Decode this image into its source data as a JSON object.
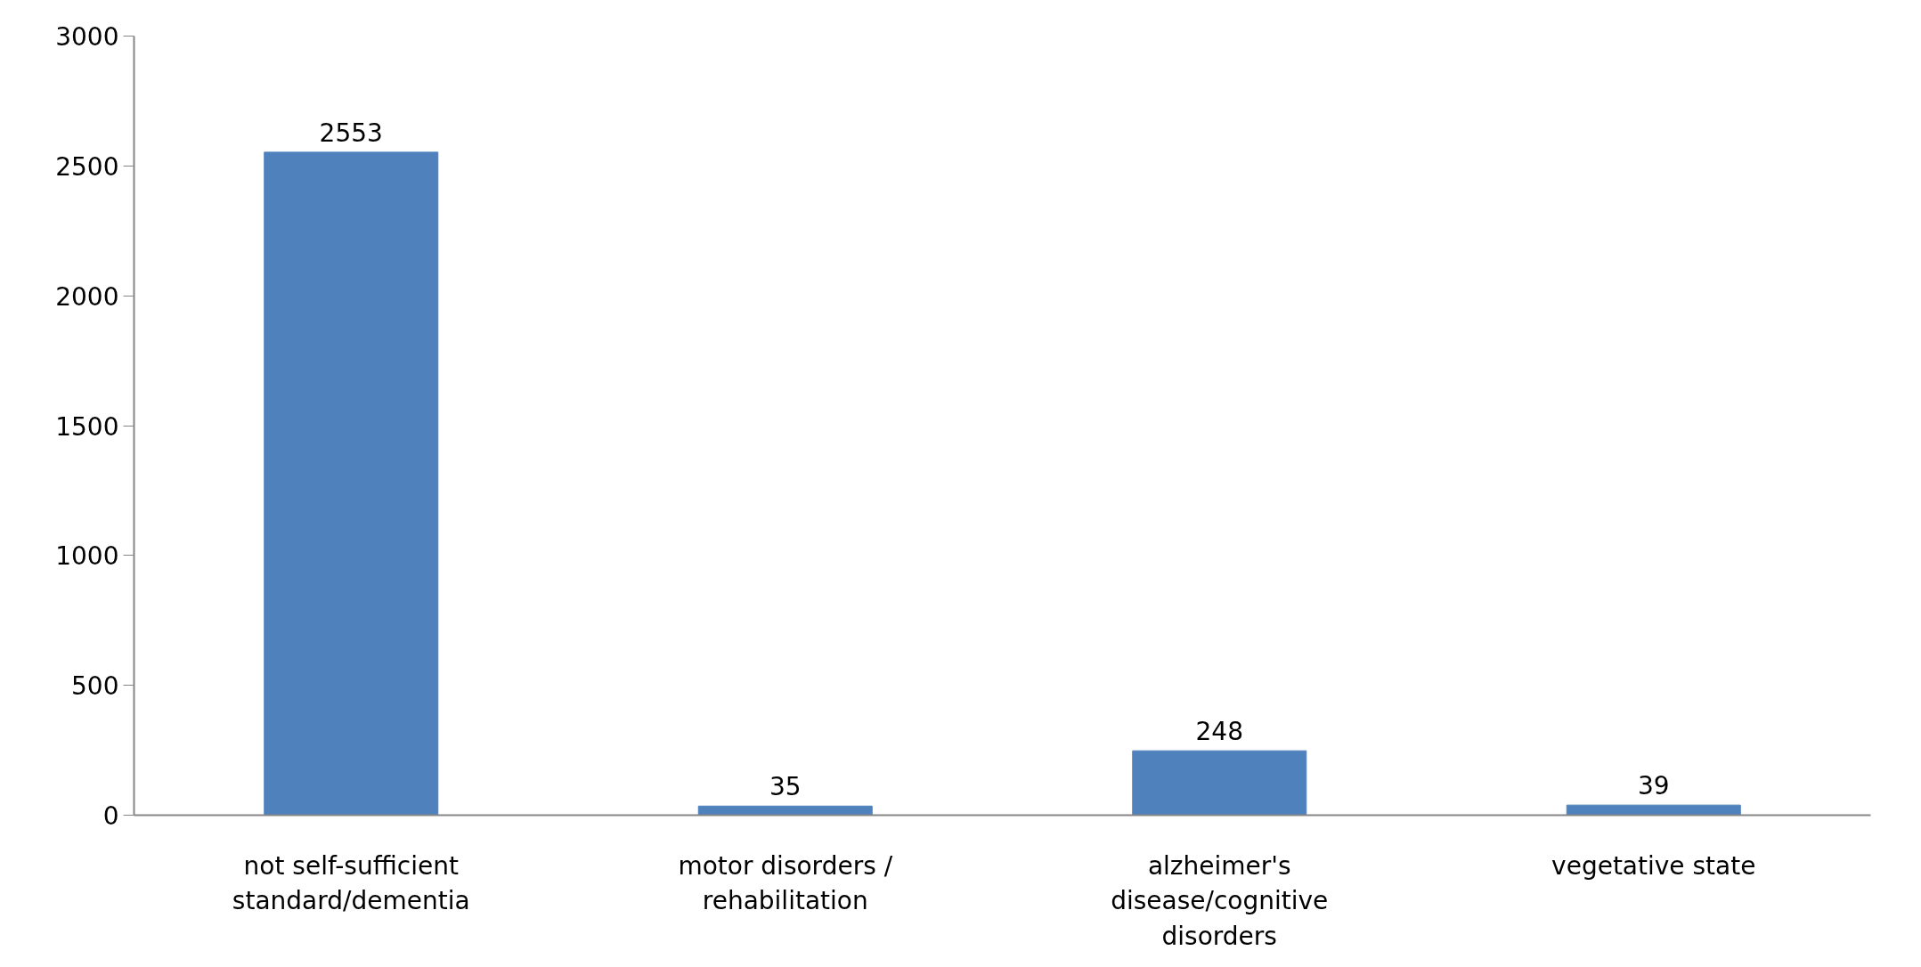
{
  "chart_data": {
    "type": "bar",
    "categories": [
      "not self-sufficient standard/dementia",
      "motor disorders / rehabilitation",
      "alzheimer's disease/cognitive disorders",
      "vegetative state"
    ],
    "values": [
      2553,
      35,
      248,
      39
    ],
    "color": "#4f81bd",
    "ylim": [
      0,
      3000
    ],
    "yticks": [
      0,
      500,
      1000,
      1500,
      2000,
      2500,
      3000
    ],
    "data_labels": true,
    "grid": false
  }
}
